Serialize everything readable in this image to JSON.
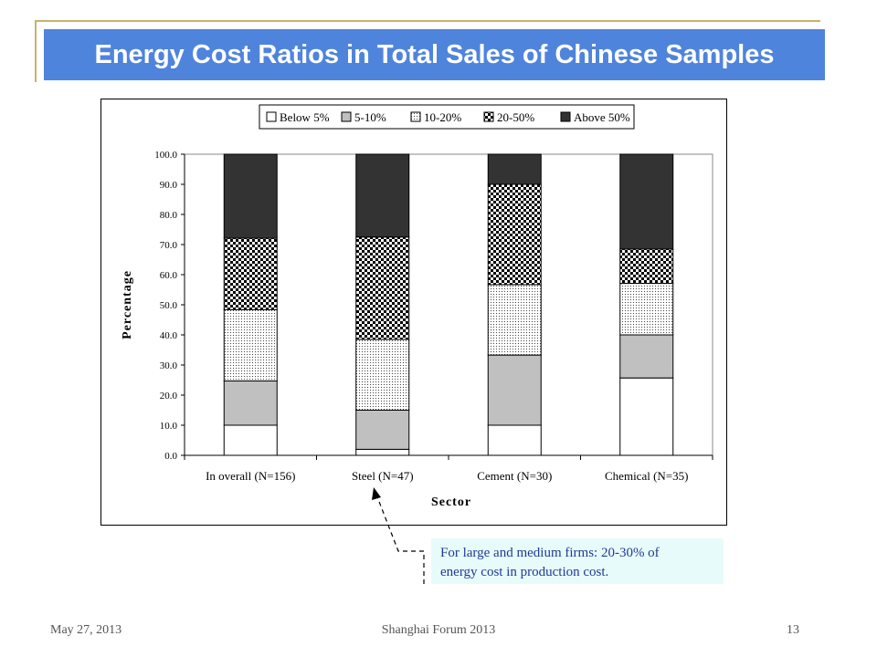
{
  "slide": {
    "title": "Energy Cost Ratios in Total Sales of Chinese Samples",
    "footer": {
      "date": "May 27, 2013",
      "event": "Shanghai Forum 2013",
      "page": "13"
    },
    "callout": {
      "line1": "For large and medium firms: 20-30% of",
      "line2": "energy cost in production cost."
    }
  },
  "chart_data": {
    "type": "bar",
    "stacked": true,
    "xlabel": "Sector",
    "ylabel": "Percentage",
    "ylim": [
      0,
      100
    ],
    "yticks": [
      0,
      10,
      20,
      30,
      40,
      50,
      60,
      70,
      80,
      90,
      100
    ],
    "legend_position": "top",
    "grid": false,
    "categories": [
      "In overall (N=156)",
      "Steel (N=47)",
      "Cement (N=30)",
      "Chemical (N=35)"
    ],
    "series": [
      {
        "name": "Below 5%",
        "values": [
          10.0,
          2.0,
          10.0,
          25.7
        ],
        "fill": "white"
      },
      {
        "name": "5-10%",
        "values": [
          14.7,
          13.0,
          23.3,
          14.3
        ],
        "fill": "gray"
      },
      {
        "name": "10-20%",
        "values": [
          23.7,
          23.5,
          23.4,
          17.1
        ],
        "fill": "dots"
      },
      {
        "name": "20-50%",
        "values": [
          23.7,
          34.0,
          33.3,
          11.4
        ],
        "fill": "checker"
      },
      {
        "name": "Above 50%",
        "values": [
          27.9,
          27.5,
          10.0,
          31.5
        ],
        "fill": "dark"
      }
    ],
    "colors": {
      "white": "#ffffff",
      "gray": "#c0c0c0",
      "dark": "#333333",
      "dots": "#444444",
      "checker": "#000000"
    }
  }
}
